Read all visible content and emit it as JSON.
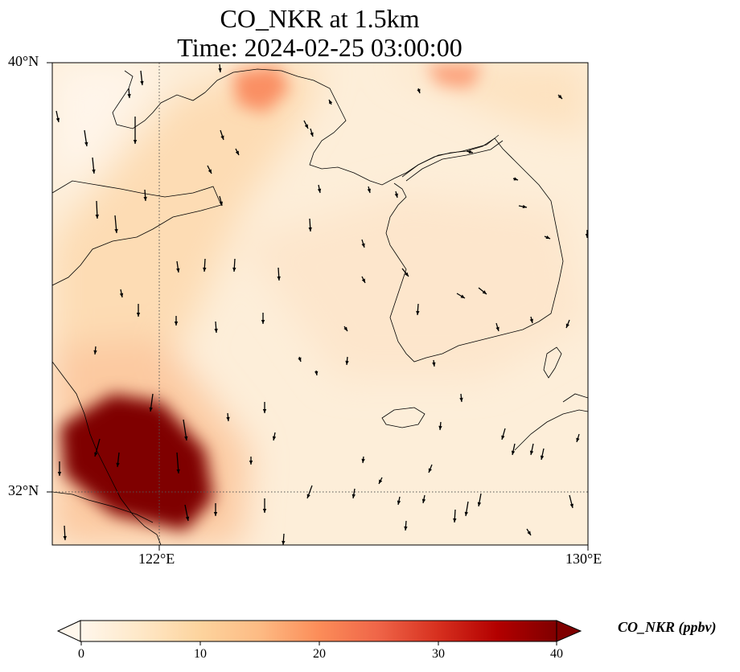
{
  "title": {
    "line1": "CO_NKR at 1.5km",
    "line2": "Time: 2024-02-25 03:00:00"
  },
  "map": {
    "lon_range": [
      120,
      130
    ],
    "lat_range": [
      31,
      40
    ],
    "lat_labels": [
      {
        "text": "40°N",
        "lat": 40
      },
      {
        "text": "32°N",
        "lat": 32
      }
    ],
    "lon_labels": [
      {
        "text": "122°E",
        "lon": 122
      },
      {
        "text": "130°E",
        "lon": 130
      }
    ],
    "gridlines": {
      "lons": [
        122
      ],
      "lats": [
        32
      ],
      "style": "dotted"
    }
  },
  "colorbar": {
    "label": "CO_NKR (ppbv)",
    "min": 0,
    "max": 40,
    "ticks": [
      "0",
      "10",
      "20",
      "30",
      "40"
    ],
    "colormap": "OrRd",
    "extend": "both"
  },
  "chart_data": {
    "type": "heatmap",
    "variable": "CO_NKR",
    "units": "ppbv",
    "x_range": [
      120,
      130
    ],
    "y_range": [
      31,
      40
    ],
    "high_regions": [
      {
        "lon": 121.5,
        "lat": 32.7,
        "value": 40
      },
      {
        "lon": 124.3,
        "lat": 39.6,
        "value": 20
      },
      {
        "lon": 127.5,
        "lat": 40.0,
        "value": 18
      }
    ],
    "background_value": 5,
    "wind_vectors": "present"
  }
}
